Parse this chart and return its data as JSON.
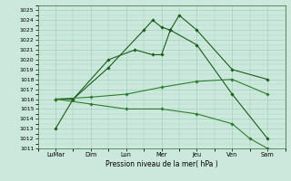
{
  "xlabel": "Pression niveau de la mer( hPa )",
  "ylim": [
    1011,
    1025.5
  ],
  "ytick_min": 1011,
  "ytick_max": 1025,
  "bg_color": "#cce8dc",
  "grid_color": "#99ccb8",
  "line_colors": [
    "#1a5c1a",
    "#1a5c1a",
    "#2e7d2e",
    "#2e7d2e"
  ],
  "x_ticks_major": [
    1,
    3,
    5,
    7,
    9,
    11,
    13
  ],
  "x_ticks_labels": [
    "LuMar",
    "Dim",
    "Lun",
    "Mer",
    "Jeu",
    "Ven",
    "Sam"
  ],
  "xlim": [
    0,
    14
  ],
  "lines": [
    {
      "x": [
        1,
        2,
        4,
        6,
        6.5,
        7,
        7.5,
        8,
        9,
        11,
        13
      ],
      "y": [
        1016,
        1016,
        1019.2,
        1023.0,
        1024.0,
        1023.3,
        1023.0,
        1024.5,
        1023.0,
        1019.0,
        1018.0
      ]
    },
    {
      "x": [
        1,
        2,
        4,
        5.5,
        6.5,
        7,
        7.5,
        9,
        11,
        13
      ],
      "y": [
        1013.0,
        1016.0,
        1020.0,
        1021.0,
        1020.5,
        1020.5,
        1023.0,
        1021.5,
        1016.5,
        1012.0
      ]
    },
    {
      "x": [
        1,
        3,
        5,
        7,
        9,
        11,
        13
      ],
      "y": [
        1016.0,
        1016.2,
        1016.5,
        1017.2,
        1017.8,
        1018.0,
        1016.5
      ]
    },
    {
      "x": [
        1,
        3,
        5,
        7,
        9,
        11,
        12,
        13
      ],
      "y": [
        1016.0,
        1015.5,
        1015.0,
        1015.0,
        1014.5,
        1013.5,
        1012.0,
        1011.0
      ]
    }
  ]
}
